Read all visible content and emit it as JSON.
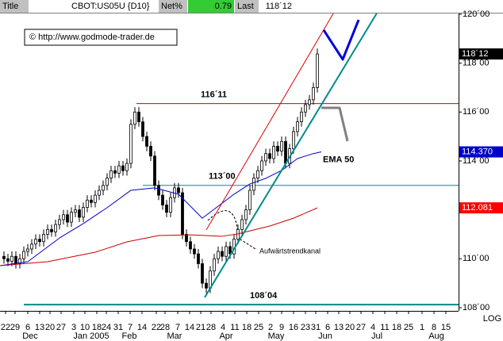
{
  "header": {
    "cells": [
      "Title",
      "CBOT:US05U {D10}",
      "Net%",
      "0.79",
      "Last",
      "118´12"
    ]
  },
  "copyright": "© http://www.godmode-trader.de",
  "chart_data": {
    "type": "candlestick",
    "xlim": [
      -1,
      114.6
    ],
    "ylim": [
      107.87,
      120.03
    ],
    "yticks": [
      {
        "value": 108,
        "label": "108´00"
      },
      {
        "value": 110,
        "label": "110´00"
      },
      {
        "value": 112,
        "label": "112´00"
      },
      {
        "value": 114,
        "label": "114´00"
      },
      {
        "value": 116,
        "label": "116´00"
      },
      {
        "value": 118,
        "label": "118´00"
      },
      {
        "value": 120,
        "label": "120´00"
      }
    ],
    "xticks": [
      {
        "value": 0.4,
        "label": "22"
      },
      {
        "value": 2.8,
        "label": "29"
      },
      {
        "value": 6,
        "label": "6"
      },
      {
        "value": 9,
        "label": "13"
      },
      {
        "value": 11.6,
        "label": "20"
      },
      {
        "value": 14.4,
        "label": "27"
      },
      {
        "value": 17.6,
        "label": "3"
      },
      {
        "value": 20.4,
        "label": "10"
      },
      {
        "value": 23.4,
        "label": "18"
      },
      {
        "value": 25.8,
        "label": "24"
      },
      {
        "value": 28.8,
        "label": "31"
      },
      {
        "value": 31.8,
        "label": "7"
      },
      {
        "value": 34.8,
        "label": "14"
      },
      {
        "value": 38.4,
        "label": "22"
      },
      {
        "value": 40.6,
        "label": "28"
      },
      {
        "value": 43.8,
        "label": "7"
      },
      {
        "value": 46.8,
        "label": "14"
      },
      {
        "value": 49.6,
        "label": "21"
      },
      {
        "value": 52.2,
        "label": "28"
      },
      {
        "value": 55.2,
        "label": "4"
      },
      {
        "value": 58.2,
        "label": "11"
      },
      {
        "value": 61.2,
        "label": "18"
      },
      {
        "value": 64.2,
        "label": "25"
      },
      {
        "value": 67.2,
        "label": "2"
      },
      {
        "value": 70,
        "label": "9"
      },
      {
        "value": 73,
        "label": "16"
      },
      {
        "value": 76,
        "label": "23"
      },
      {
        "value": 78.6,
        "label": "31"
      },
      {
        "value": 81.6,
        "label": "6"
      },
      {
        "value": 84.4,
        "label": "13"
      },
      {
        "value": 87.2,
        "label": "20"
      },
      {
        "value": 90,
        "label": "27"
      },
      {
        "value": 93,
        "label": "4"
      },
      {
        "value": 96,
        "label": "11"
      },
      {
        "value": 99,
        "label": "18"
      },
      {
        "value": 102,
        "label": "25"
      },
      {
        "value": 105.4,
        "label": "1"
      },
      {
        "value": 108.4,
        "label": "8"
      },
      {
        "value": 111.4,
        "label": "15"
      }
    ],
    "month_labels": [
      {
        "value": 6.6,
        "label": "Dec"
      },
      {
        "value": 22,
        "label": "Jan 2005"
      },
      {
        "value": 31.6,
        "label": "Feb"
      },
      {
        "value": 43,
        "label": "Mar"
      },
      {
        "value": 56,
        "label": "Apr"
      },
      {
        "value": 68.6,
        "label": "May"
      },
      {
        "value": 81,
        "label": "Jun"
      },
      {
        "value": 94,
        "label": "Jul"
      },
      {
        "value": 109,
        "label": "Aug"
      }
    ],
    "scale_label": "LOG",
    "last_label": "118´12",
    "candles": {
      "open": [
        110.1,
        110.0,
        109.9,
        110.1,
        109.8,
        110.0,
        110.3,
        110.4,
        110.6,
        110.8,
        110.7,
        111.0,
        111.2,
        111.1,
        111.4,
        111.6,
        111.8,
        111.5,
        111.9,
        112.0,
        111.7,
        112.1,
        112.4,
        112.3,
        112.6,
        112.8,
        113.0,
        113.3,
        113.6,
        113.5,
        113.8,
        113.6,
        113.9,
        115.5,
        116.0,
        115.6,
        115.0,
        114.6,
        114.2,
        113.0,
        112.6,
        112.2,
        111.9,
        112.5,
        112.9,
        112.7,
        111.0,
        110.7,
        110.4,
        110.2,
        109.8,
        109.0,
        108.8,
        109.5,
        110.0,
        110.3,
        110.1,
        110.5,
        110.2,
        110.8,
        111.2,
        111.6,
        112.0,
        112.8,
        113.3,
        113.6,
        114.0,
        114.3,
        114.1,
        114.6,
        114.4,
        114.8,
        113.9,
        114.5,
        115.2,
        115.6,
        116.0,
        116.3,
        116.5,
        117.0
      ],
      "high": [
        110.3,
        110.2,
        110.3,
        110.3,
        110.2,
        110.5,
        110.6,
        110.8,
        111.0,
        111.0,
        111.2,
        111.4,
        111.4,
        111.6,
        111.8,
        112.0,
        112.0,
        112.1,
        112.2,
        112.2,
        112.3,
        112.6,
        112.6,
        112.8,
        113.0,
        113.2,
        113.5,
        113.8,
        113.8,
        114.0,
        114.0,
        114.1,
        115.7,
        116.2,
        116.2,
        115.8,
        115.2,
        114.8,
        114.4,
        113.2,
        112.8,
        112.4,
        112.7,
        113.1,
        113.1,
        112.9,
        111.2,
        110.9,
        110.6,
        110.4,
        110.0,
        109.2,
        109.7,
        110.2,
        110.5,
        110.5,
        110.7,
        110.7,
        111.0,
        111.4,
        111.8,
        112.2,
        113.0,
        113.5,
        113.8,
        114.2,
        114.5,
        114.5,
        114.8,
        114.8,
        115.0,
        115.0,
        114.7,
        115.4,
        115.8,
        116.2,
        116.5,
        116.7,
        117.2,
        118.6
      ],
      "low": [
        109.8,
        109.7,
        109.7,
        109.6,
        109.6,
        109.8,
        110.1,
        110.2,
        110.4,
        110.5,
        110.5,
        110.8,
        110.9,
        110.9,
        111.2,
        111.4,
        111.3,
        111.3,
        111.7,
        111.5,
        111.5,
        111.9,
        112.1,
        112.1,
        112.4,
        112.6,
        112.8,
        113.1,
        113.3,
        113.3,
        113.4,
        113.4,
        113.7,
        115.3,
        115.4,
        114.8,
        114.4,
        114.0,
        112.8,
        112.4,
        112.0,
        111.7,
        111.7,
        112.3,
        112.5,
        110.8,
        110.5,
        110.2,
        110.0,
        109.6,
        108.8,
        108.6,
        108.6,
        109.3,
        109.8,
        109.9,
        109.9,
        110.0,
        110.0,
        110.6,
        111.0,
        111.4,
        111.8,
        112.6,
        113.1,
        113.4,
        113.8,
        113.9,
        113.9,
        114.2,
        114.2,
        113.7,
        113.7,
        114.3,
        115.0,
        115.4,
        115.8,
        116.1,
        116.3,
        116.8
      ],
      "close": [
        110.0,
        109.9,
        110.1,
        109.8,
        110.0,
        110.3,
        110.4,
        110.6,
        110.8,
        110.7,
        111.0,
        111.2,
        111.1,
        111.4,
        111.6,
        111.8,
        111.5,
        111.9,
        112.0,
        111.7,
        112.1,
        112.4,
        112.3,
        112.6,
        112.8,
        113.0,
        113.3,
        113.6,
        113.5,
        113.8,
        113.6,
        113.9,
        115.5,
        116.0,
        115.6,
        115.0,
        114.6,
        114.2,
        113.0,
        112.6,
        112.2,
        111.9,
        112.5,
        112.9,
        112.7,
        111.0,
        110.7,
        110.4,
        110.2,
        109.8,
        109.0,
        108.8,
        109.5,
        110.0,
        110.3,
        110.1,
        110.5,
        110.2,
        110.8,
        111.2,
        111.6,
        112.0,
        112.8,
        113.3,
        113.6,
        114.0,
        114.3,
        114.1,
        114.6,
        114.4,
        114.8,
        113.9,
        114.5,
        115.2,
        115.6,
        116.0,
        116.3,
        116.5,
        117.0,
        118.375
      ]
    },
    "lines": [
      {
        "name": "EMA 50",
        "color": "#0000cc",
        "width": 1,
        "x": [
          -1,
          6,
          14,
          20,
          26,
          32,
          38,
          44,
          50,
          54,
          58,
          62,
          66,
          70,
          74,
          78,
          80
        ],
        "values": [
          109.72,
          109.88,
          110.85,
          111.44,
          112.09,
          112.8,
          112.9,
          112.64,
          111.66,
          112.15,
          112.64,
          113.06,
          113.29,
          113.61,
          114.1,
          114.3,
          114.37
        ],
        "value_label": "114.370",
        "label_color": "#0000cc"
      },
      {
        "color": "#cc0000",
        "width": 1,
        "x": [
          -1,
          11,
          23,
          31,
          39,
          47,
          55,
          59,
          67,
          73,
          79
        ],
        "values": [
          109.72,
          109.88,
          110.27,
          110.69,
          110.95,
          110.98,
          110.92,
          111.02,
          111.34,
          111.66,
          112.081
        ],
        "value_label": "112.081",
        "label_color": "#ff0000"
      },
      {
        "color": "#008b8b",
        "width": 2,
        "x": [
          50.6,
          96
        ],
        "values": [
          108.42,
          120.58
        ]
      },
      {
        "color": "#dd0000",
        "width": 1,
        "x": [
          51,
          85
        ],
        "values": [
          111.18,
          120.58
        ]
      },
      {
        "color": "#0000dd",
        "width": 3,
        "x": [
          80.6,
          85.4,
          89.4
        ],
        "values": [
          119.35,
          118.15,
          119.77
        ]
      },
      {
        "color": "#808080",
        "width": 3,
        "x": [
          80,
          84.6,
          86.6
        ],
        "values": [
          116.17,
          116.17,
          114.81
        ]
      }
    ],
    "levels": [
      {
        "value": 116.34375,
        "label": "116´11",
        "from": 33.4,
        "color": "#cc0000"
      },
      {
        "value": 113,
        "label": "113´00",
        "from": 35,
        "color": "#008b8b"
      },
      {
        "value": 108.125,
        "label": "108´04",
        "from": 5,
        "color": "#008b8b"
      }
    ],
    "annotations": [
      "Aufwärtstrendkanal"
    ]
  }
}
